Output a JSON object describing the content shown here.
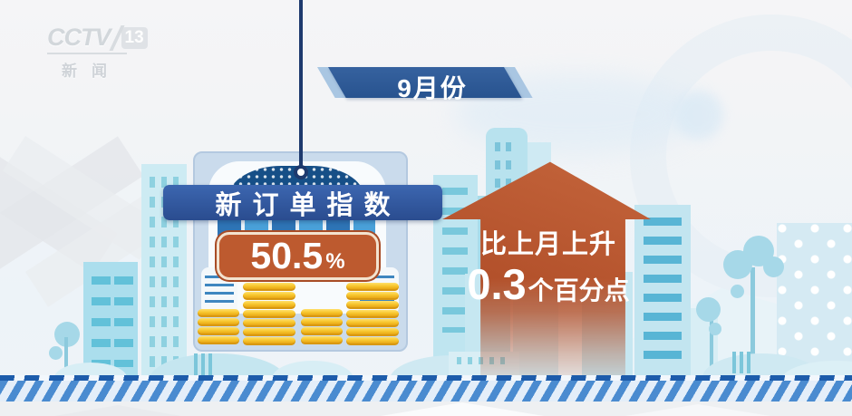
{
  "logo": {
    "brand": "CCTV",
    "channel": "13",
    "subtitle": "新闻"
  },
  "banner": {
    "label": "9月份"
  },
  "indicator": {
    "name": "新订单指数",
    "value": "50.5",
    "unit": "%",
    "direction": "up",
    "change_text": "比上月上升",
    "change_value": "0.3",
    "change_unit": "个百分点"
  },
  "decor": {
    "coin_stacks": [
      4,
      7,
      4,
      7
    ]
  },
  "colors": {
    "banner_blue": "#2d5b9f",
    "banner_light_blue": "#a9c6e2",
    "label_blue": "#30549b",
    "value_box_orange": "#bd5a2f",
    "arrow_red": "#b5542e",
    "coin_gold": "#f2b21c",
    "line_navy": "#1e3a6e",
    "skyline_teal": "#b5e2ee",
    "band_blue": "#4a8bd0"
  }
}
